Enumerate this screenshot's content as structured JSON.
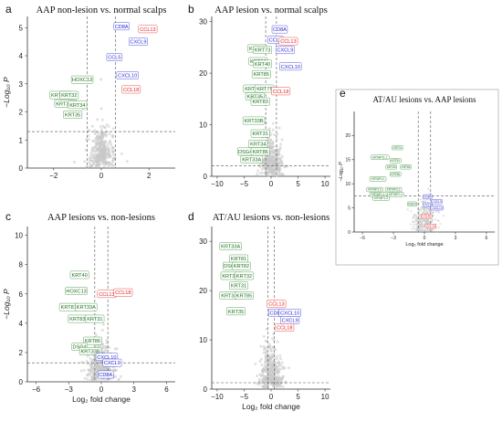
{
  "figure": {
    "description_labels": [
      "a",
      "b",
      "c",
      "d",
      "e"
    ]
  },
  "chart_data": [
    {
      "id": "a",
      "type": "scatter",
      "title": "AAP non-lesion vs. normal scalps",
      "xlabel": "",
      "ylabel": "−Log₁₀ P",
      "xlim": [
        -3.1,
        3.1
      ],
      "ylim": [
        0,
        5.4
      ],
      "xticks": [
        -2,
        0,
        2
      ],
      "yticks": [
        0,
        1,
        2,
        3,
        4,
        5
      ],
      "fc_threshold": 0.6,
      "p_threshold": 1.3,
      "genes": [
        {
          "label": "CCL13",
          "x": 1.95,
          "y": 4.95,
          "group": "red"
        },
        {
          "label": "CD8A",
          "x": 0.85,
          "y": 5.05,
          "group": "blue"
        },
        {
          "label": "CXCL9",
          "x": 1.55,
          "y": 4.5,
          "group": "blue"
        },
        {
          "label": "CCL5",
          "x": 0.55,
          "y": 3.95,
          "group": "blue"
        },
        {
          "label": "CXCL10",
          "x": 1.1,
          "y": 3.3,
          "group": "blue"
        },
        {
          "label": "HOXC13",
          "x": -0.8,
          "y": 3.15,
          "group": "green"
        },
        {
          "label": "CCL18",
          "x": 1.25,
          "y": 2.8,
          "group": "red"
        },
        {
          "label": "KRT33B",
          "x": -1.7,
          "y": 2.6,
          "group": "green"
        },
        {
          "label": "KRT32",
          "x": -1.35,
          "y": 2.6,
          "group": "green"
        },
        {
          "label": "KRT33A",
          "x": -1.5,
          "y": 2.3,
          "group": "green"
        },
        {
          "label": "KRT34",
          "x": -1.0,
          "y": 2.25,
          "group": "green"
        },
        {
          "label": "KRT35",
          "x": -1.2,
          "y": 1.9,
          "group": "green"
        }
      ]
    },
    {
      "id": "b",
      "type": "scatter",
      "title": "AAP lesion vs. normal scalps",
      "xlabel": "",
      "ylabel": "",
      "xlim": [
        -11,
        11
      ],
      "ylim": [
        0,
        31
      ],
      "xticks": [
        -10,
        -5,
        0,
        5,
        10
      ],
      "yticks": [
        0,
        10,
        20,
        30
      ],
      "fc_threshold": 1,
      "p_threshold": 2,
      "genes": [
        {
          "label": "CD8A",
          "x": 1.6,
          "y": 28.5,
          "group": "blue"
        },
        {
          "label": "CCL5",
          "x": 0.8,
          "y": 26.5,
          "group": "blue"
        },
        {
          "label": "CCL13",
          "x": 3.2,
          "y": 26.2,
          "group": "red"
        },
        {
          "label": "KRT32",
          "x": -2.6,
          "y": 24.8,
          "group": "green"
        },
        {
          "label": "KRT73",
          "x": -1.6,
          "y": 24.5,
          "group": "green"
        },
        {
          "label": "CXCL9",
          "x": 2.6,
          "y": 24.5,
          "group": "blue"
        },
        {
          "label": "KRT82",
          "x": -2.4,
          "y": 22.3,
          "group": "green"
        },
        {
          "label": "KRT40",
          "x": -1.6,
          "y": 21.8,
          "group": "green"
        },
        {
          "label": "CXCL10",
          "x": 3.6,
          "y": 21.3,
          "group": "blue"
        },
        {
          "label": "KRT85",
          "x": -1.8,
          "y": 19.8,
          "group": "green"
        },
        {
          "label": "KRT81",
          "x": -3.4,
          "y": 17.0,
          "group": "green"
        },
        {
          "label": "KRT75",
          "x": -1.2,
          "y": 17.0,
          "group": "green"
        },
        {
          "label": "CCL18",
          "x": 1.8,
          "y": 16.5,
          "group": "red"
        },
        {
          "label": "KRT35",
          "x": -3.0,
          "y": 15.5,
          "group": "green"
        },
        {
          "label": "KRT83",
          "x": -2.0,
          "y": 14.5,
          "group": "green"
        },
        {
          "label": "KRT33B",
          "x": -3.2,
          "y": 10.8,
          "group": "green"
        },
        {
          "label": "KRT31",
          "x": -2.0,
          "y": 8.3,
          "group": "green"
        },
        {
          "label": "KRT34",
          "x": -2.4,
          "y": 6.3,
          "group": "green"
        },
        {
          "label": "DSG4",
          "x": -4.8,
          "y": 4.8,
          "group": "green"
        },
        {
          "label": "KRT86",
          "x": -2.0,
          "y": 4.8,
          "group": "green"
        },
        {
          "label": "KRT33A",
          "x": -3.6,
          "y": 3.3,
          "group": "green"
        }
      ]
    },
    {
      "id": "c",
      "type": "scatter",
      "title": "AAP lesions vs. non-lesions",
      "xlabel": "Log₂ fold change",
      "ylabel": "−Log₁₀ P",
      "xlim": [
        -6.8,
        6.8
      ],
      "ylim": [
        0,
        10.6
      ],
      "xticks": [
        -6,
        -3,
        0,
        3,
        6
      ],
      "yticks": [
        0,
        2,
        4,
        6,
        8,
        10
      ],
      "fc_threshold": 0.6,
      "p_threshold": 1.3,
      "genes": [
        {
          "label": "KRT40",
          "x": -2.0,
          "y": 7.3,
          "group": "green"
        },
        {
          "label": "HOXC13",
          "x": -2.3,
          "y": 6.2,
          "group": "green"
        },
        {
          "label": "CCL13",
          "x": 0.5,
          "y": 6.0,
          "group": "red"
        },
        {
          "label": "CCL18",
          "x": 2.0,
          "y": 6.1,
          "group": "red"
        },
        {
          "label": "KRT81",
          "x": -3.0,
          "y": 5.1,
          "group": "green"
        },
        {
          "label": "KRT33A",
          "x": -1.4,
          "y": 5.1,
          "group": "green"
        },
        {
          "label": "KRT83",
          "x": -2.2,
          "y": 4.3,
          "group": "green"
        },
        {
          "label": "KRT31",
          "x": -0.6,
          "y": 4.3,
          "group": "green"
        },
        {
          "label": "KRT86",
          "x": -0.8,
          "y": 2.8,
          "group": "green"
        },
        {
          "label": "DSG4",
          "x": -2.0,
          "y": 2.4,
          "group": "green"
        },
        {
          "label": "KRT33B",
          "x": -1.0,
          "y": 2.1,
          "group": "green"
        },
        {
          "label": "CXCL10",
          "x": 0.5,
          "y": 1.7,
          "group": "blue"
        },
        {
          "label": "CXCL9",
          "x": 1.0,
          "y": 1.3,
          "group": "blue"
        },
        {
          "label": "CD8A",
          "x": 0.4,
          "y": 0.5,
          "group": "blue"
        }
      ]
    },
    {
      "id": "d",
      "type": "scatter",
      "title": "AT/AU lesions vs. non-lesions",
      "xlabel": "Log₂ fold change",
      "ylabel": "",
      "xlim": [
        -11,
        11
      ],
      "ylim": [
        0,
        33
      ],
      "xticks": [
        -10,
        -5,
        0,
        5,
        10
      ],
      "yticks": [
        0,
        10,
        20,
        30
      ],
      "fc_threshold": 0.6,
      "p_threshold": 1.3,
      "genes": [
        {
          "label": "KRT33A",
          "x": -7.5,
          "y": 29.0,
          "group": "green"
        },
        {
          "label": "KRT81",
          "x": -6.0,
          "y": 26.5,
          "group": "green"
        },
        {
          "label": "DSG4",
          "x": -7.5,
          "y": 25.0,
          "group": "green"
        },
        {
          "label": "KRT82",
          "x": -5.5,
          "y": 25.0,
          "group": "green"
        },
        {
          "label": "KRT33B",
          "x": -7.3,
          "y": 23.0,
          "group": "green"
        },
        {
          "label": "KRT32",
          "x": -5.0,
          "y": 23.0,
          "group": "green"
        },
        {
          "label": "KRT31",
          "x": -6.0,
          "y": 21.0,
          "group": "green"
        },
        {
          "label": "KRT34",
          "x": -7.8,
          "y": 19.0,
          "group": "green"
        },
        {
          "label": "KRT85",
          "x": -5.0,
          "y": 19.0,
          "group": "green"
        },
        {
          "label": "CCL13",
          "x": 1.0,
          "y": 17.3,
          "group": "red"
        },
        {
          "label": "KRT35",
          "x": -6.5,
          "y": 15.8,
          "group": "green"
        },
        {
          "label": "CD8A",
          "x": 1.0,
          "y": 15.5,
          "group": "blue"
        },
        {
          "label": "CXCL10",
          "x": 3.5,
          "y": 15.5,
          "group": "blue"
        },
        {
          "label": "CXCL9",
          "x": 3.5,
          "y": 14.0,
          "group": "blue"
        },
        {
          "label": "CCL18",
          "x": 2.5,
          "y": 12.5,
          "group": "red"
        }
      ]
    },
    {
      "id": "e",
      "type": "scatter",
      "title": "AT/AU lesions vs. AAP lesions",
      "xlabel": "Log₂ fold change",
      "ylabel": "−Log₁₀ P",
      "xlim": [
        -6.8,
        6.8
      ],
      "ylim": [
        0,
        25
      ],
      "xticks": [
        -6,
        -3,
        0,
        3,
        6
      ],
      "yticks": [
        0,
        5,
        10,
        15,
        20
      ],
      "fc_threshold": 0.6,
      "p_threshold": 7.5,
      "genes": [
        {
          "label": "KRT31",
          "x": -2.6,
          "y": 17.5,
          "group": "green"
        },
        {
          "label": "KRTAP11.1",
          "x": -4.3,
          "y": 15.5,
          "group": "green"
        },
        {
          "label": "KRT81",
          "x": -2.8,
          "y": 14.8,
          "group": "green"
        },
        {
          "label": "KRT35",
          "x": -3.2,
          "y": 13.5,
          "group": "green"
        },
        {
          "label": "KRT85",
          "x": -1.8,
          "y": 13.5,
          "group": "green"
        },
        {
          "label": "KRT86",
          "x": -2.8,
          "y": 12.0,
          "group": "green"
        },
        {
          "label": "KRTAP3.1",
          "x": -4.5,
          "y": 11.0,
          "group": "green"
        },
        {
          "label": "KRTAP1.5",
          "x": -4.8,
          "y": 8.8,
          "group": "green"
        },
        {
          "label": "KRTAP3.2",
          "x": -3.0,
          "y": 8.8,
          "group": "green"
        },
        {
          "label": "KRTAP1.1",
          "x": -4.5,
          "y": 7.8,
          "group": "green"
        },
        {
          "label": "KRTAP2.4",
          "x": -2.8,
          "y": 7.8,
          "group": "green"
        },
        {
          "label": "KRTAP1.3",
          "x": -4.2,
          "y": 7.0,
          "group": "green"
        },
        {
          "label": "CD8A",
          "x": 0.3,
          "y": 7.3,
          "group": "blue"
        },
        {
          "label": "CXCL9",
          "x": 1.2,
          "y": 6.3,
          "group": "blue"
        },
        {
          "label": "DSG4",
          "x": -1.2,
          "y": 5.8,
          "group": "green"
        },
        {
          "label": "CCL5",
          "x": 0.3,
          "y": 5.6,
          "group": "blue"
        },
        {
          "label": "CXCL10",
          "x": 1.2,
          "y": 5.0,
          "group": "blue"
        },
        {
          "label": "CCL18",
          "x": 0.2,
          "y": 3.3,
          "group": "red"
        },
        {
          "label": "CCL13",
          "x": 0.6,
          "y": 1.2,
          "group": "red"
        }
      ]
    }
  ],
  "colors": {
    "green": "#2e8b2e",
    "blue": "#2a2ad6",
    "red": "#e02020",
    "grey": "#c8c8c8",
    "box_text_green": "#1f6f1f"
  }
}
